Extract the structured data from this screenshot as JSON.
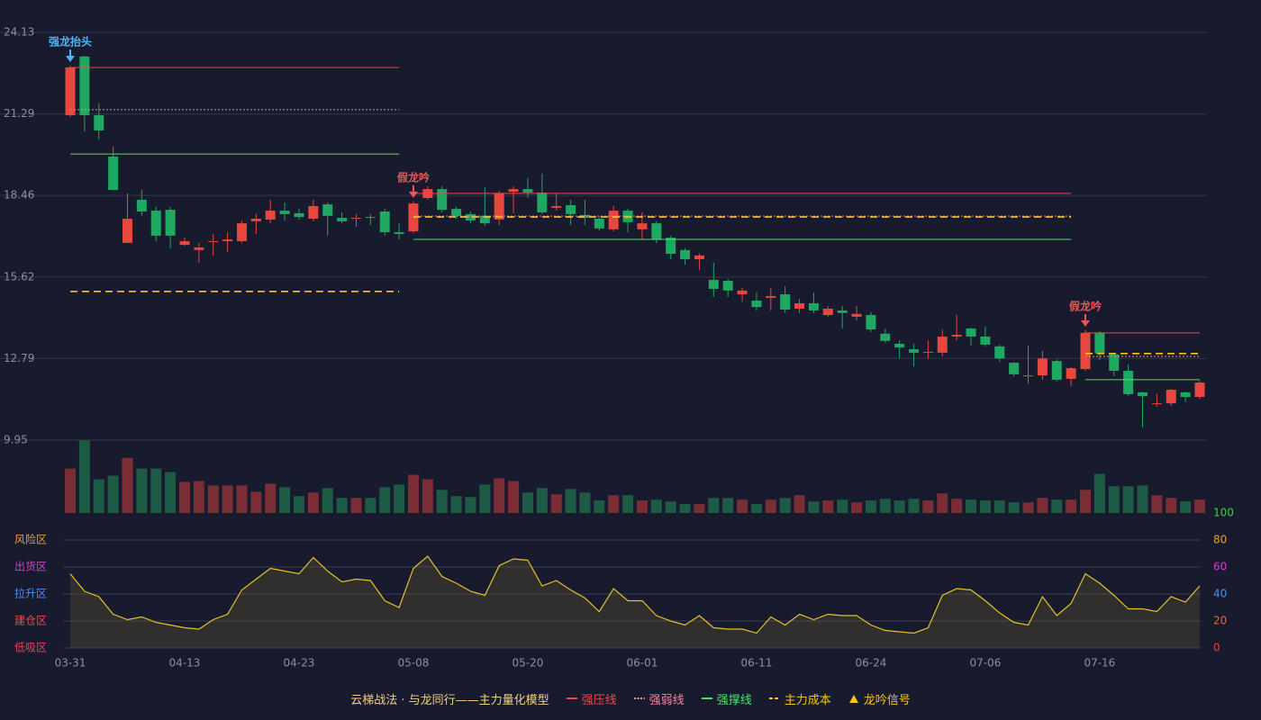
{
  "chart_data": [
    {
      "type": "candlestick",
      "title": "云梯战法 · 与龙同行——主力量化模型",
      "categories": [
        "03-31",
        null,
        null,
        null,
        null,
        null,
        null,
        null,
        "04-13",
        null,
        null,
        null,
        null,
        null,
        null,
        null,
        "04-23",
        null,
        null,
        null,
        null,
        null,
        null,
        null,
        "05-08",
        null,
        null,
        null,
        null,
        null,
        null,
        null,
        "05-20",
        null,
        null,
        null,
        null,
        null,
        null,
        null,
        "06-01",
        null,
        null,
        null,
        null,
        null,
        null,
        null,
        "06-11",
        null,
        null,
        null,
        null,
        null,
        null,
        null,
        "06-24",
        null,
        null,
        null,
        null,
        null,
        null,
        null,
        "07-06",
        null,
        null,
        null,
        null,
        null,
        null,
        null,
        "07-16",
        null,
        null,
        null,
        null,
        null,
        null,
        null
      ],
      "open": [
        21.25,
        23.29,
        21.25,
        19.81,
        16.81,
        18.31,
        17.93,
        17.96,
        16.74,
        16.56,
        16.84,
        16.87,
        16.87,
        17.56,
        17.62,
        17.93,
        17.84,
        17.65,
        18.15,
        17.68,
        17.65,
        17.71,
        17.9,
        17.18,
        17.21,
        18.37,
        18.68,
        17.99,
        17.81,
        17.75,
        17.62,
        18.59,
        18.68,
        18.56,
        18.03,
        18.12,
        17.78,
        17.65,
        17.28,
        17.93,
        17.28,
        17.49,
        16.99,
        16.56,
        16.24,
        15.52,
        15.49,
        15.02,
        14.8,
        14.9,
        15.02,
        14.52,
        14.71,
        14.3,
        14.46,
        14.24,
        14.3,
        13.65,
        13.3,
        13.11,
        12.99,
        12.99,
        13.55,
        13.83,
        13.55,
        13.21,
        12.64,
        12.17,
        12.2,
        12.7,
        12.08,
        12.42,
        13.68,
        12.93,
        12.36,
        11.61,
        11.2,
        11.23,
        11.61,
        11.45
      ],
      "high": [
        22.97,
        23.32,
        21.66,
        20.16,
        18.53,
        18.65,
        18.06,
        18.06,
        16.99,
        16.81,
        17.12,
        17.18,
        17.59,
        17.81,
        18.31,
        18.21,
        17.99,
        18.31,
        18.21,
        17.87,
        17.81,
        17.81,
        17.99,
        17.49,
        18.25,
        18.78,
        18.78,
        18.06,
        17.9,
        18.75,
        18.62,
        18.78,
        19.06,
        19.22,
        18.53,
        18.31,
        18.31,
        17.75,
        18.09,
        17.99,
        17.87,
        17.56,
        17.06,
        16.62,
        16.43,
        16.12,
        15.55,
        15.24,
        15.08,
        15.24,
        15.3,
        14.86,
        15.08,
        14.61,
        14.61,
        14.61,
        14.4,
        13.83,
        13.42,
        13.3,
        13.42,
        13.8,
        14.3,
        13.86,
        13.89,
        13.27,
        12.67,
        13.24,
        13.05,
        12.76,
        12.49,
        13.77,
        13.74,
        12.99,
        12.58,
        11.64,
        11.55,
        11.73,
        11.64,
        12.01
      ],
      "low": [
        21.19,
        20.69,
        20.41,
        18.65,
        16.81,
        17.75,
        16.87,
        16.62,
        16.71,
        16.12,
        16.37,
        16.49,
        16.81,
        17.12,
        17.49,
        17.59,
        17.62,
        17.56,
        17.06,
        17.49,
        17.37,
        17.43,
        17.06,
        16.93,
        17.15,
        18.31,
        17.87,
        17.65,
        17.49,
        17.4,
        17.43,
        17.84,
        18.37,
        17.81,
        17.93,
        17.43,
        17.43,
        17.24,
        17.21,
        17.18,
        16.93,
        16.81,
        16.24,
        16.05,
        15.87,
        14.93,
        14.93,
        14.77,
        14.46,
        14.46,
        14.37,
        14.37,
        14.37,
        14.24,
        13.83,
        14.12,
        13.71,
        13.33,
        12.79,
        12.52,
        12.79,
        12.86,
        13.42,
        13.24,
        13.21,
        12.67,
        12.17,
        11.92,
        12.05,
        11.99,
        11.83,
        12.36,
        12.74,
        12.17,
        11.48,
        10.39,
        11.11,
        11.14,
        11.27,
        11.39
      ],
      "close": [
        22.91,
        21.25,
        20.72,
        18.65,
        17.65,
        17.9,
        17.06,
        17.06,
        16.87,
        16.65,
        16.87,
        16.93,
        17.49,
        17.65,
        17.93,
        17.81,
        17.71,
        18.09,
        17.75,
        17.56,
        17.68,
        17.68,
        17.18,
        17.12,
        18.18,
        18.68,
        17.96,
        17.75,
        17.59,
        17.49,
        18.53,
        18.68,
        18.56,
        17.87,
        18.09,
        17.81,
        17.68,
        17.31,
        17.93,
        17.53,
        17.49,
        16.93,
        16.43,
        16.24,
        16.37,
        15.21,
        15.15,
        15.15,
        14.58,
        14.96,
        14.49,
        14.71,
        14.46,
        14.52,
        14.37,
        14.34,
        13.8,
        13.4,
        13.17,
        12.99,
        13.02,
        13.55,
        13.61,
        13.55,
        13.27,
        12.79,
        12.24,
        12.2,
        12.79,
        12.05,
        12.45,
        13.68,
        12.96,
        12.36,
        11.55,
        11.48,
        11.23,
        11.7,
        11.45,
        11.95
      ],
      "up_color": "#e8473d",
      "down_color": "#1fa862",
      "ylim": [
        9.95,
        24.13
      ],
      "yticks": [
        24.13,
        21.29,
        18.46,
        15.62,
        12.79,
        9.95
      ],
      "grid": true,
      "lines": [
        {
          "name": "强压线",
          "color": "#e84a4a",
          "style": "solid",
          "segments": [
            {
              "start": 0,
              "end": 23,
              "value": 22.91
            },
            {
              "start": 24,
              "end": 70,
              "value": 18.53
            },
            {
              "start": 71,
              "end": 79,
              "value": 13.68
            }
          ]
        },
        {
          "name": "强弱线",
          "color": "#f08aa0",
          "style": "dotted",
          "segments": [
            {
              "start": 0,
              "end": 23,
              "value": 21.44
            },
            {
              "start": 24,
              "end": 70,
              "value": 17.74
            },
            {
              "start": 71,
              "end": 79,
              "value": 12.86
            }
          ]
        },
        {
          "name": "强撑线",
          "color": "#4ee06a",
          "style": "solid",
          "segments": [
            {
              "start": 0,
              "end": 23,
              "value": 19.9
            },
            {
              "start": 24,
              "end": 70,
              "value": 16.93
            },
            {
              "start": 71,
              "end": 79,
              "value": 12.05
            }
          ]
        },
        {
          "name": "主力成本",
          "color": "#f5c518",
          "style": "dashed",
          "segments": [
            {
              "start": 0,
              "end": 23,
              "value": 15.12
            },
            {
              "start": 24,
              "end": 70,
              "value": 17.71
            },
            {
              "start": 71,
              "end": 79,
              "value": 12.96
            }
          ]
        }
      ],
      "signals": {
        "name": "龙吟信号",
        "color": "#f5c518",
        "marks": [
          {
            "index": 0,
            "label": "强龙抬头",
            "color": "#4fb3f5"
          },
          {
            "index": 24,
            "label": "假龙吟",
            "color": "#e8575a"
          },
          {
            "index": 71,
            "label": "假龙吟",
            "color": "#e8575a"
          }
        ]
      }
    },
    {
      "type": "bar",
      "values": [
        50,
        82,
        38,
        42,
        62,
        50,
        50,
        46,
        35,
        36,
        31,
        31,
        31,
        24,
        33,
        29,
        19,
        23,
        28,
        17,
        17,
        17,
        29,
        32,
        43,
        38,
        26,
        19,
        18,
        32,
        39,
        36,
        23,
        28,
        21,
        27,
        23,
        14,
        20,
        20,
        14,
        15,
        13,
        10,
        10,
        17,
        17,
        15,
        10,
        15,
        17,
        20,
        13,
        14,
        15,
        12,
        14,
        16,
        14,
        16,
        14,
        22,
        16,
        15,
        14,
        14,
        12,
        12,
        17,
        15,
        15,
        26,
        44,
        30,
        30,
        31,
        20,
        17,
        13,
        15
      ],
      "up_color": "#7b2d36",
      "down_color": "#1e5b45"
    },
    {
      "type": "line",
      "values": [
        55,
        42,
        38,
        25,
        21,
        23,
        19,
        17,
        15,
        14,
        21,
        25,
        43,
        51,
        59,
        57,
        55,
        67,
        57,
        49,
        51,
        50,
        35,
        30,
        59,
        68,
        53,
        48,
        42,
        39,
        61,
        66,
        65,
        46,
        50,
        43,
        37,
        27,
        44,
        35,
        35,
        24,
        20,
        17,
        24,
        15,
        14,
        14,
        11,
        23,
        17,
        25,
        21,
        25,
        24,
        24,
        17,
        13,
        12,
        11,
        15,
        39,
        44,
        43,
        35,
        26,
        19,
        17,
        38,
        24,
        33,
        55,
        48,
        39,
        29,
        29,
        27,
        38,
        34,
        46
      ],
      "color": "#e3c12a",
      "fill": "rgba(140,115,50,0.22)",
      "ylim": [
        0,
        100
      ],
      "yticks": [
        0,
        20,
        40,
        60,
        80,
        100
      ],
      "ytick_colors": [
        "#e8404a",
        "#e8604a",
        "#4a8ff0",
        "#d43fd4",
        "#e8a03a",
        "#3ecf3e"
      ],
      "zones": [
        {
          "value": 80,
          "label": "风险区",
          "color": "#e8a03a"
        },
        {
          "value": 60,
          "label": "出货区",
          "color": "#d43fd4"
        },
        {
          "value": 40,
          "label": "拉升区",
          "color": "#4a8ff0"
        },
        {
          "value": 20,
          "label": "建仓区",
          "color": "#e84a4a"
        },
        {
          "value": 0,
          "label": "低吸区",
          "color": "#e8405a"
        }
      ],
      "grid": true
    }
  ]
}
